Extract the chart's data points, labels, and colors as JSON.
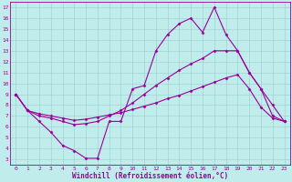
{
  "xlabel": "Windchill (Refroidissement éolien,°C)",
  "background_color": "#c0ecec",
  "line_color": "#990099",
  "grid_color": "#99cccc",
  "xlim_min": -0.5,
  "xlim_max": 23.5,
  "ylim_min": 2.5,
  "ylim_max": 17.5,
  "xticks": [
    0,
    1,
    2,
    3,
    4,
    5,
    6,
    7,
    8,
    9,
    10,
    11,
    12,
    13,
    14,
    15,
    16,
    17,
    18,
    19,
    20,
    21,
    22,
    23
  ],
  "yticks": [
    3,
    4,
    5,
    6,
    7,
    8,
    9,
    10,
    11,
    12,
    13,
    14,
    15,
    16,
    17
  ],
  "line1_x": [
    0,
    1,
    2,
    3,
    4,
    5,
    6,
    7,
    8,
    9,
    10,
    11,
    12,
    13,
    14,
    15,
    16,
    17,
    18,
    19,
    20,
    21,
    22,
    23
  ],
  "line1_y": [
    9.0,
    7.5,
    6.5,
    5.5,
    4.3,
    3.8,
    3.1,
    3.1,
    6.5,
    6.5,
    9.5,
    9.8,
    13.0,
    14.5,
    15.5,
    16.0,
    14.7,
    17.0,
    14.5,
    13.0,
    11.0,
    9.5,
    8.0,
    6.5
  ],
  "line2_x": [
    0,
    1,
    2,
    3,
    4,
    5,
    6,
    7,
    8,
    9,
    10,
    11,
    12,
    13,
    14,
    15,
    16,
    17,
    18,
    19,
    20,
    21,
    22,
    23
  ],
  "line2_y": [
    9.0,
    7.5,
    7.0,
    6.8,
    6.5,
    6.2,
    6.3,
    6.5,
    7.0,
    7.5,
    8.2,
    9.0,
    9.8,
    10.5,
    11.2,
    11.8,
    12.3,
    13.0,
    13.0,
    13.0,
    11.0,
    9.5,
    7.0,
    6.5
  ],
  "line3_x": [
    0,
    1,
    2,
    3,
    4,
    5,
    6,
    7,
    8,
    9,
    10,
    11,
    12,
    13,
    14,
    15,
    16,
    17,
    18,
    19,
    20,
    21,
    22,
    23
  ],
  "line3_y": [
    9.0,
    7.5,
    7.2,
    7.0,
    6.8,
    6.6,
    6.7,
    6.9,
    7.1,
    7.3,
    7.6,
    7.9,
    8.2,
    8.6,
    8.9,
    9.3,
    9.7,
    10.1,
    10.5,
    10.8,
    9.5,
    7.8,
    6.8,
    6.5
  ],
  "tick_fontsize": 4.5,
  "label_fontsize": 5.5
}
